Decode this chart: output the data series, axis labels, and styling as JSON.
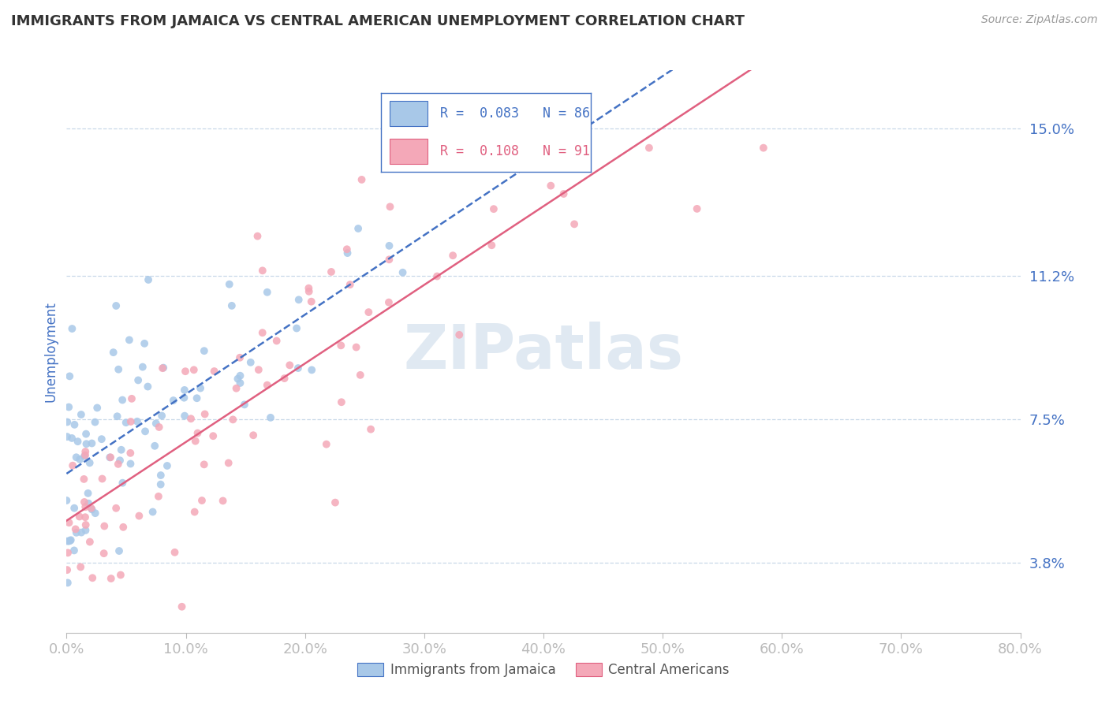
{
  "title": "IMMIGRANTS FROM JAMAICA VS CENTRAL AMERICAN UNEMPLOYMENT CORRELATION CHART",
  "source": "Source: ZipAtlas.com",
  "ylabel": "Unemployment",
  "xlim": [
    0.0,
    0.8
  ],
  "ylim": [
    0.02,
    0.165
  ],
  "yticks": [
    0.038,
    0.075,
    0.112,
    0.15
  ],
  "ytick_labels": [
    "3.8%",
    "7.5%",
    "11.2%",
    "15.0%"
  ],
  "xtick_labels": [
    "0.0%",
    "10.0%",
    "20.0%",
    "30.0%",
    "40.0%",
    "50.0%",
    "60.0%",
    "70.0%",
    "80.0%"
  ],
  "xticks": [
    0.0,
    0.1,
    0.2,
    0.3,
    0.4,
    0.5,
    0.6,
    0.7,
    0.8
  ],
  "blue_color": "#a8c8e8",
  "pink_color": "#f4a8b8",
  "series1_label": "Immigrants from Jamaica",
  "series2_label": "Central Americans",
  "R1": 0.083,
  "N1": 86,
  "R2": 0.108,
  "N2": 91,
  "watermark": "ZIPatlas",
  "background_color": "#ffffff",
  "grid_color": "#c8d8e8",
  "tick_label_color": "#4472c4",
  "seed1": 42,
  "seed2": 123
}
